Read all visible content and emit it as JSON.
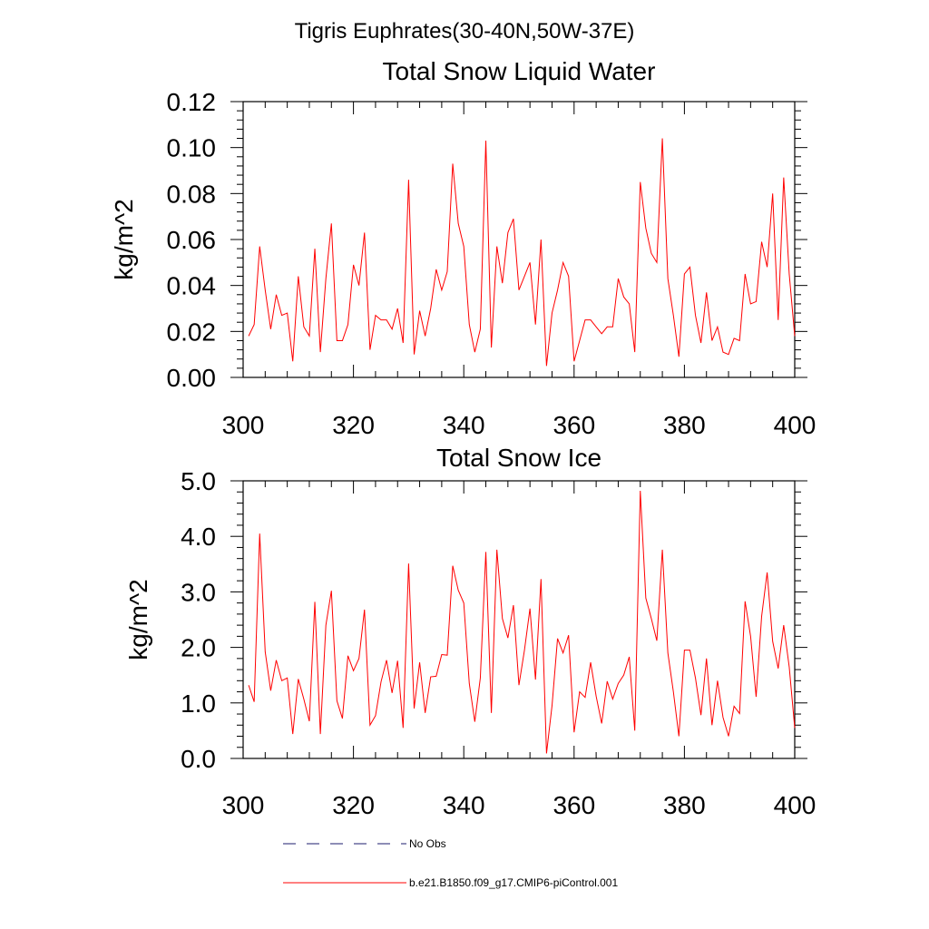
{
  "figure": {
    "title": "Tigris Euphrates(30-40N,50W-37E)"
  },
  "colors": {
    "series": "#ff0000",
    "obs": "#1c1c6e",
    "axis": "#000000"
  },
  "chart_data": [
    {
      "type": "line",
      "title": "Total Snow Liquid Water",
      "xlabel": "",
      "ylabel": "kg/m^2",
      "xlim": [
        300,
        400
      ],
      "ylim": [
        0.0,
        0.12
      ],
      "xticks": [
        300,
        320,
        340,
        360,
        380,
        400
      ],
      "xtick_labels": [
        "300",
        "320",
        "340",
        "360",
        "380",
        "400"
      ],
      "yticks": [
        0.0,
        0.02,
        0.04,
        0.06,
        0.08,
        0.1,
        0.12
      ],
      "ytick_labels": [
        "0.00",
        "0.02",
        "0.04",
        "0.06",
        "0.08",
        "0.10",
        "0.12"
      ],
      "grid": false,
      "series": [
        {
          "name": "b.e21.B1850.f09_g17.CMIP6-piControl.001",
          "x": [
            301,
            302,
            303,
            304,
            305,
            306,
            307,
            308,
            309,
            310,
            311,
            312,
            313,
            314,
            315,
            316,
            317,
            318,
            319,
            320,
            321,
            322,
            323,
            324,
            325,
            326,
            327,
            328,
            329,
            330,
            331,
            332,
            333,
            334,
            335,
            336,
            337,
            338,
            339,
            340,
            341,
            342,
            343,
            344,
            345,
            346,
            347,
            348,
            349,
            350,
            351,
            352,
            353,
            354,
            355,
            356,
            357,
            358,
            359,
            360,
            361,
            362,
            363,
            364,
            365,
            366,
            367,
            368,
            369,
            370,
            371,
            372,
            373,
            374,
            375,
            376,
            377,
            378,
            379,
            380,
            381,
            382,
            383,
            384,
            385,
            386,
            387,
            388,
            389,
            390,
            391,
            392,
            393,
            394,
            395,
            396,
            397,
            398,
            399,
            400
          ],
          "values": [
            0.018,
            0.023,
            0.057,
            0.038,
            0.021,
            0.036,
            0.027,
            0.028,
            0.007,
            0.044,
            0.022,
            0.018,
            0.056,
            0.011,
            0.043,
            0.067,
            0.016,
            0.016,
            0.023,
            0.049,
            0.04,
            0.063,
            0.012,
            0.027,
            0.025,
            0.025,
            0.021,
            0.03,
            0.015,
            0.086,
            0.01,
            0.029,
            0.018,
            0.03,
            0.047,
            0.038,
            0.046,
            0.093,
            0.067,
            0.057,
            0.023,
            0.011,
            0.021,
            0.103,
            0.013,
            0.057,
            0.041,
            0.063,
            0.069,
            0.038,
            0.044,
            0.05,
            0.023,
            0.06,
            0.005,
            0.028,
            0.038,
            0.05,
            0.044,
            0.007,
            0.016,
            0.025,
            0.025,
            0.022,
            0.019,
            0.022,
            0.022,
            0.043,
            0.035,
            0.032,
            0.011,
            0.085,
            0.065,
            0.054,
            0.05,
            0.104,
            0.043,
            0.027,
            0.009,
            0.045,
            0.048,
            0.027,
            0.015,
            0.037,
            0.016,
            0.022,
            0.011,
            0.01,
            0.017,
            0.016,
            0.045,
            0.032,
            0.033,
            0.059,
            0.048,
            0.08,
            0.025,
            0.087,
            0.045,
            0.018
          ]
        }
      ]
    },
    {
      "type": "line",
      "title": "Total Snow Ice",
      "xlabel": "",
      "ylabel": "kg/m^2",
      "xlim": [
        300,
        400
      ],
      "ylim": [
        0.0,
        5.0
      ],
      "xticks": [
        300,
        320,
        340,
        360,
        380,
        400
      ],
      "xtick_labels": [
        "300",
        "320",
        "340",
        "360",
        "380",
        "400"
      ],
      "yticks": [
        0.0,
        1.0,
        2.0,
        3.0,
        4.0,
        5.0
      ],
      "ytick_labels": [
        "0.0",
        "1.0",
        "2.0",
        "3.0",
        "4.0",
        "5.0"
      ],
      "grid": false,
      "series": [
        {
          "name": "b.e21.B1850.f09_g17.CMIP6-piControl.001",
          "x": [
            301,
            302,
            303,
            304,
            305,
            306,
            307,
            308,
            309,
            310,
            311,
            312,
            313,
            314,
            315,
            316,
            317,
            318,
            319,
            320,
            321,
            322,
            323,
            324,
            325,
            326,
            327,
            328,
            329,
            330,
            331,
            332,
            333,
            334,
            335,
            336,
            337,
            338,
            339,
            340,
            341,
            342,
            343,
            344,
            345,
            346,
            347,
            348,
            349,
            350,
            351,
            352,
            353,
            354,
            355,
            356,
            357,
            358,
            359,
            360,
            361,
            362,
            363,
            364,
            365,
            366,
            367,
            368,
            369,
            370,
            371,
            372,
            373,
            374,
            375,
            376,
            377,
            378,
            379,
            380,
            381,
            382,
            383,
            384,
            385,
            386,
            387,
            388,
            389,
            390,
            391,
            392,
            393,
            394,
            395,
            396,
            397,
            398,
            399,
            400
          ],
          "values": [
            1.32,
            1.02,
            4.05,
            1.92,
            1.22,
            1.77,
            1.4,
            1.45,
            0.44,
            1.43,
            1.07,
            0.67,
            2.82,
            0.44,
            2.4,
            3.02,
            1.04,
            0.72,
            1.85,
            1.58,
            1.8,
            2.68,
            0.6,
            0.77,
            1.38,
            1.77,
            1.18,
            1.76,
            0.55,
            3.51,
            0.9,
            1.73,
            0.82,
            1.47,
            1.48,
            1.87,
            1.86,
            3.47,
            3.03,
            2.8,
            1.35,
            0.66,
            1.45,
            3.72,
            0.82,
            3.76,
            2.52,
            2.17,
            2.76,
            1.32,
            1.95,
            2.7,
            1.42,
            3.23,
            0.09,
            0.95,
            2.16,
            1.9,
            2.22,
            0.47,
            1.2,
            1.1,
            1.73,
            1.12,
            0.63,
            1.39,
            1.07,
            1.35,
            1.5,
            1.83,
            0.5,
            4.82,
            2.89,
            2.52,
            2.12,
            3.76,
            1.9,
            1.2,
            0.4,
            1.95,
            1.95,
            1.45,
            0.78,
            1.8,
            0.6,
            1.4,
            0.74,
            0.4,
            0.94,
            0.81,
            2.83,
            2.2,
            1.11,
            2.56,
            3.35,
            2.11,
            1.62,
            2.4,
            1.65,
            0.55
          ]
        }
      ]
    }
  ],
  "legend": {
    "placement": "bottom",
    "items": [
      {
        "label": "No Obs",
        "style": "dashed"
      },
      {
        "label": "b.e21.B1850.f09_g17.CMIP6-piControl.001",
        "style": "solid"
      }
    ]
  }
}
